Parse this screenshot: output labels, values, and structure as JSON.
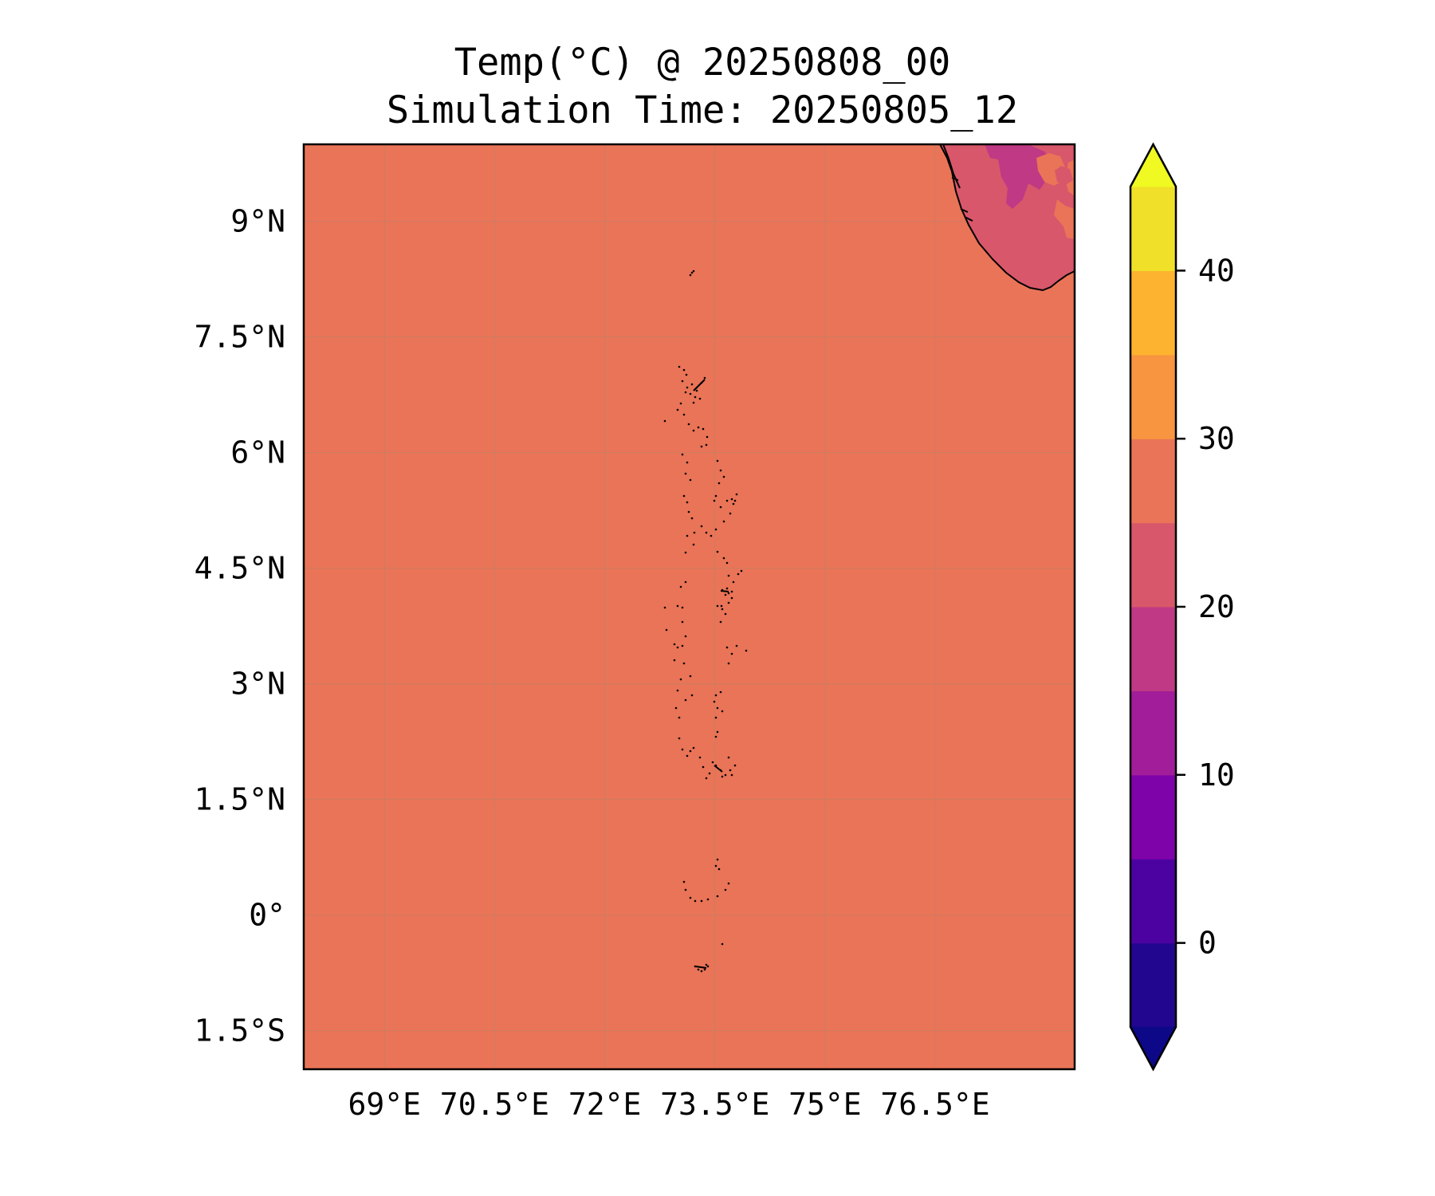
{
  "title": "Temp(°C) @ 20250808_00",
  "subtitle": "Simulation Time: 20250805_12",
  "map": {
    "lon_range": [
      67.9,
      78.4
    ],
    "lat_range": [
      -2.0,
      10.0
    ],
    "x_ticks": [
      {
        "value": 69,
        "label": "69°E"
      },
      {
        "value": 70.5,
        "label": "70.5°E"
      },
      {
        "value": 72,
        "label": "72°E"
      },
      {
        "value": 73.5,
        "label": "73.5°E"
      },
      {
        "value": 75,
        "label": "75°E"
      },
      {
        "value": 76.5,
        "label": "76.5°E"
      }
    ],
    "y_ticks": [
      {
        "value": 9,
        "label": "9°N"
      },
      {
        "value": 7.5,
        "label": "7.5°N"
      },
      {
        "value": 6,
        "label": "6°N"
      },
      {
        "value": 4.5,
        "label": "4.5°N"
      },
      {
        "value": 3,
        "label": "3°N"
      },
      {
        "value": 1.5,
        "label": "1.5°N"
      },
      {
        "value": 0,
        "label": "0°"
      },
      {
        "value": -1.5,
        "label": "1.5°S"
      }
    ],
    "ocean_value_range": [
      25,
      30
    ],
    "gridlines": true
  },
  "colorbar": {
    "extend": "both",
    "levels": [
      -5,
      0,
      5,
      10,
      15,
      20,
      25,
      30,
      35,
      40,
      45
    ],
    "colors": [
      "#23068f",
      "#4c02a1",
      "#7e03a8",
      "#a21d9a",
      "#bf3984",
      "#d8576b",
      "#ea7457",
      "#f89540",
      "#fdb32f",
      "#f0e02a"
    ],
    "under_color": "#0d0887",
    "over_color": "#f0f921",
    "tick_labels": [
      {
        "value": 0,
        "label": "0"
      },
      {
        "value": 10,
        "label": "10"
      },
      {
        "value": 20,
        "label": "20"
      },
      {
        "value": 30,
        "label": "30"
      },
      {
        "value": 40,
        "label": "40"
      }
    ]
  }
}
